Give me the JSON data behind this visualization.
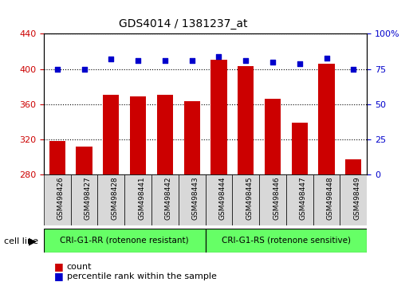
{
  "title": "GDS4014 / 1381237_at",
  "samples": [
    "GSM498426",
    "GSM498427",
    "GSM498428",
    "GSM498441",
    "GSM498442",
    "GSM498443",
    "GSM498444",
    "GSM498445",
    "GSM498446",
    "GSM498447",
    "GSM498448",
    "GSM498449"
  ],
  "counts": [
    318,
    312,
    371,
    369,
    371,
    364,
    411,
    403,
    366,
    339,
    406,
    298
  ],
  "percentile_ranks": [
    75,
    75,
    82,
    81,
    81,
    81,
    84,
    81,
    80,
    79,
    83,
    75
  ],
  "group1_label": "CRI-G1-RR (rotenone resistant)",
  "group2_label": "CRI-G1-RS (rotenone sensitive)",
  "group1_count": 6,
  "group2_count": 6,
  "ylim_left": [
    280,
    440
  ],
  "ylim_right": [
    0,
    100
  ],
  "yticks_left": [
    280,
    320,
    360,
    400,
    440
  ],
  "yticks_right": [
    0,
    25,
    50,
    75,
    100
  ],
  "bar_color": "#cc0000",
  "dot_color": "#0000cc",
  "bar_width": 0.6,
  "grid_color": "black",
  "group_color": "#66ff66",
  "tick_label_color_left": "#cc0000",
  "tick_label_color_right": "#0000cc",
  "cell_line_label": "cell line",
  "legend_count_label": "count",
  "legend_percentile_label": "percentile rank within the sample",
  "bg_color": "#d8d8d8"
}
